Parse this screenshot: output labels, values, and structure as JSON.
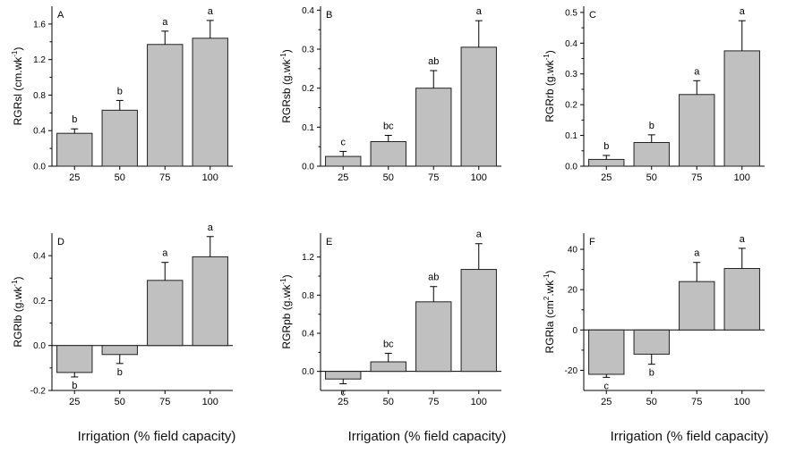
{
  "colors": {
    "bar_fill": "#c0c0c0",
    "bar_stroke": "#222222",
    "axis": "#000000"
  },
  "figure": {
    "xaxis_titles": [
      "Irrigation (% field capacity)",
      "Irrigation (% field capacity)",
      "Irrigation (% field capacity)"
    ]
  },
  "chart_data": [
    {
      "type": "bar",
      "panel": "A",
      "categories": [
        "25",
        "50",
        "75",
        "100"
      ],
      "values": [
        0.37,
        0.63,
        1.37,
        1.44
      ],
      "errors": [
        0.05,
        0.11,
        0.15,
        0.2
      ],
      "letters": [
        "b",
        "b",
        "a",
        "a"
      ],
      "ylabel": "RGRsl (cm.wk",
      "ylabel_sup": "-1",
      "ylabel_end": ")",
      "ylim": [
        0,
        1.8
      ],
      "yticks": [
        "0.0",
        "0.4",
        "0.8",
        "1.2",
        "1.6"
      ],
      "xlabel": "Irrigation (% field capacity)"
    },
    {
      "type": "bar",
      "panel": "B",
      "categories": [
        "25",
        "50",
        "75",
        "100"
      ],
      "values": [
        0.025,
        0.063,
        0.2,
        0.305
      ],
      "errors": [
        0.013,
        0.016,
        0.045,
        0.068
      ],
      "letters": [
        "c",
        "bc",
        "ab",
        "a"
      ],
      "ylabel": "RGRsb (g.wk",
      "ylabel_sup": "-1",
      "ylabel_end": ")",
      "ylim": [
        0,
        0.41
      ],
      "yticks": [
        "0.0",
        "0.1",
        "0.2",
        "0.3",
        "0.4"
      ],
      "xlabel": "Irrigation (% field capacity)"
    },
    {
      "type": "bar",
      "panel": "C",
      "categories": [
        "25",
        "50",
        "75",
        "100"
      ],
      "values": [
        0.022,
        0.077,
        0.233,
        0.375
      ],
      "errors": [
        0.013,
        0.025,
        0.045,
        0.098
      ],
      "letters": [
        "b",
        "b",
        "a",
        "a"
      ],
      "ylabel": "RGRrb (g.wk",
      "ylabel_sup": "-1",
      "ylabel_end": ")",
      "ylim": [
        0,
        0.52
      ],
      "yticks": [
        "0.0",
        "0.1",
        "0.2",
        "0.3",
        "0.4",
        "0.5"
      ],
      "xlabel": "Irrigation (% field capacity)"
    },
    {
      "type": "bar",
      "panel": "D",
      "categories": [
        "25",
        "50",
        "75",
        "100"
      ],
      "values": [
        -0.12,
        -0.04,
        0.29,
        0.395
      ],
      "errors": [
        0.02,
        0.04,
        0.08,
        0.09
      ],
      "letters": [
        "b",
        "b",
        "a",
        "a"
      ],
      "ylabel": "RGRlb (g.wk",
      "ylabel_sup": "-1",
      "ylabel_end": ")",
      "ylim": [
        -0.2,
        0.5
      ],
      "yticks": [
        "-0.2",
        "0.0",
        "0.2",
        "0.4"
      ],
      "xlabel": "Irrigation (% field capacity)"
    },
    {
      "type": "bar",
      "panel": "E",
      "categories": [
        "25",
        "50",
        "75",
        "100"
      ],
      "values": [
        -0.08,
        0.1,
        0.73,
        1.07
      ],
      "errors": [
        0.05,
        0.09,
        0.16,
        0.27
      ],
      "letters": [
        "c",
        "bc",
        "ab",
        "a"
      ],
      "ylabel": "RGRpb (g.wk",
      "ylabel_sup": "-1",
      "ylabel_end": ")",
      "ylim": [
        -0.2,
        1.45
      ],
      "yticks": [
        "0.0",
        "0.4",
        "0.8",
        "1.2"
      ],
      "xlabel": "Irrigation (% field capacity)"
    },
    {
      "type": "bar",
      "panel": "F",
      "categories": [
        "25",
        "50",
        "75",
        "100"
      ],
      "values": [
        -22,
        -12,
        24,
        30.5
      ],
      "errors": [
        1.5,
        5,
        9.5,
        10
      ],
      "letters": [
        "c",
        "b",
        "a",
        "a"
      ],
      "ylabel": "RGRla (cm",
      "ylabel_sup": "2",
      "ylabel_mid": ".wk",
      "ylabel_sup2": "-1",
      "ylabel_end": ")",
      "ylim": [
        -30,
        48
      ],
      "yticks": [
        "-20",
        "0",
        "20",
        "40"
      ],
      "xlabel": "Irrigation (% field capacity)"
    }
  ]
}
